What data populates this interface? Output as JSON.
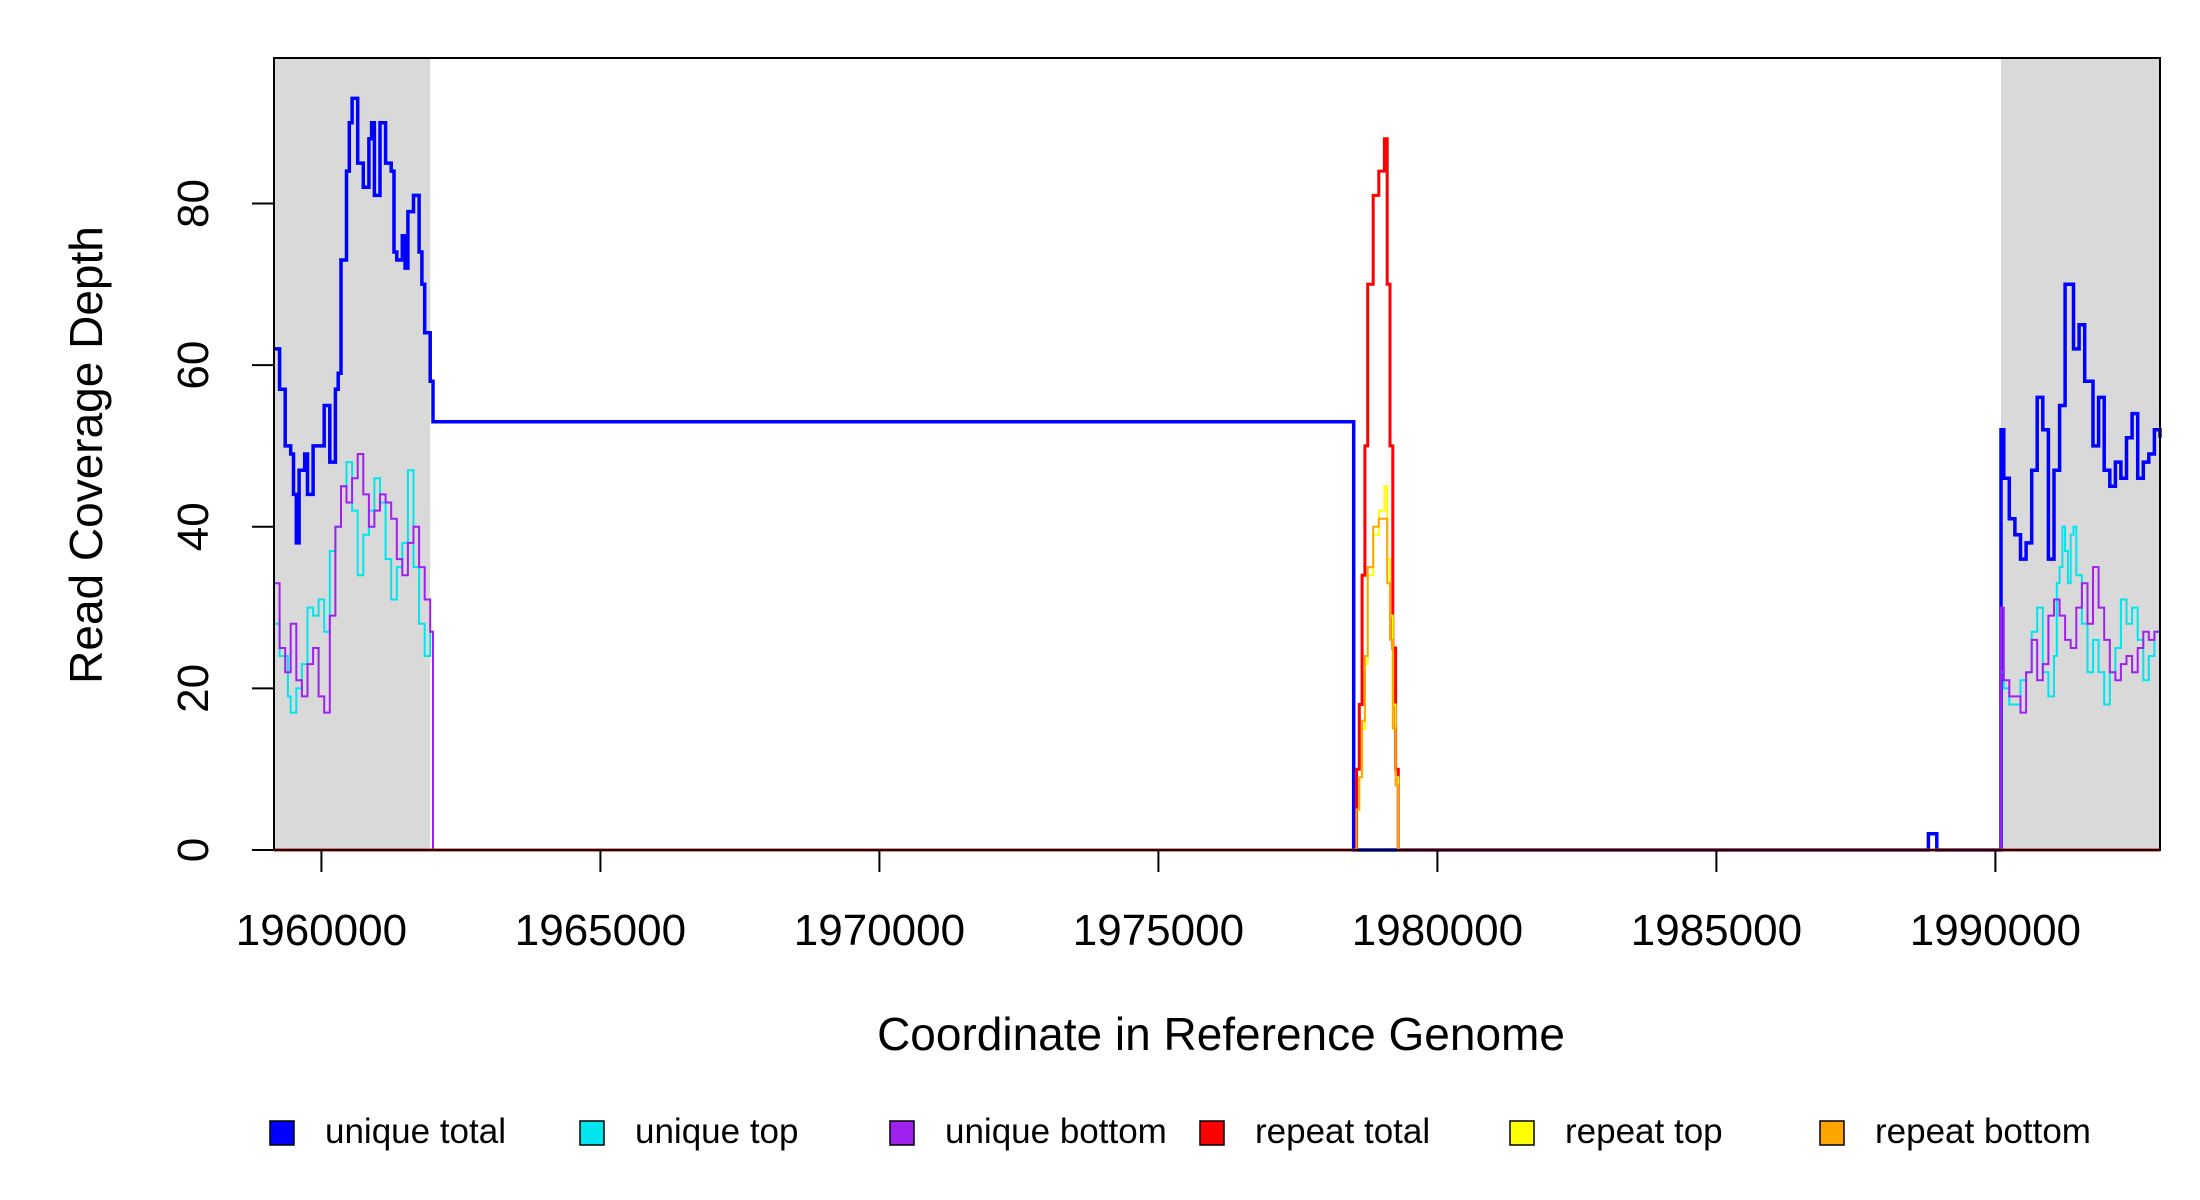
{
  "chart_data": {
    "type": "line",
    "xlabel": "Coordinate in Reference Genome",
    "ylabel": "Read Coverage Depth",
    "xlim": [
      1959150,
      1992950
    ],
    "ylim": [
      0,
      98
    ],
    "x_ticks": [
      1960000,
      1965000,
      1970000,
      1975000,
      1980000,
      1985000,
      1990000
    ],
    "y_ticks": [
      0,
      20,
      40,
      60,
      80
    ],
    "grid": false,
    "shaded_regions": [
      {
        "x": [
          1959150,
          1961950
        ],
        "color": "#d9d9d9"
      },
      {
        "x": [
          1990100,
          1992950
        ],
        "color": "#d9d9d9"
      }
    ],
    "legend_position": "bottom",
    "series": [
      {
        "name": "unique total",
        "color": "#0000ff",
        "step": true,
        "x": [
          1959150,
          1959250,
          1959350,
          1959450,
          1959500,
          1959550,
          1959600,
          1959700,
          1959750,
          1959850,
          1959950,
          1960050,
          1960150,
          1960250,
          1960300,
          1960350,
          1960450,
          1960500,
          1960550,
          1960650,
          1960750,
          1960850,
          1960900,
          1960950,
          1961050,
          1961150,
          1961250,
          1961300,
          1961350,
          1961450,
          1961500,
          1961550,
          1961650,
          1961750,
          1961800,
          1961850,
          1961950,
          1962000,
          1978500,
          1978600,
          1978700,
          1979200,
          1979350,
          1988800,
          1988900,
          1988950,
          1989000,
          1990050,
          1990100,
          1990150,
          1990250,
          1990350,
          1990450,
          1990550,
          1990650,
          1990750,
          1990850,
          1990950,
          1991050,
          1991150,
          1991250,
          1991300,
          1991400,
          1991500,
          1991600,
          1991650,
          1991750,
          1991850,
          1991950,
          1992050,
          1992150,
          1992250,
          1992350,
          1992450,
          1992550,
          1992650,
          1992750,
          1992850,
          1992950
        ],
        "y": [
          62,
          57,
          50,
          49,
          44,
          38,
          47,
          49,
          44,
          50,
          50,
          55,
          48,
          57,
          59,
          73,
          84,
          90,
          93,
          85,
          82,
          88,
          90,
          81,
          90,
          85,
          84,
          74,
          73,
          76,
          72,
          79,
          81,
          74,
          70,
          64,
          58,
          53,
          0,
          0,
          0,
          0,
          0,
          2,
          2,
          0,
          0,
          0,
          52,
          46,
          41,
          39,
          36,
          38,
          47,
          56,
          52,
          36,
          47,
          55,
          70,
          70,
          62,
          65,
          58,
          58,
          50,
          56,
          47,
          45,
          48,
          46,
          51,
          54,
          46,
          48,
          49,
          52,
          51
        ]
      },
      {
        "name": "unique top",
        "color": "#00e5ee",
        "step": true,
        "x": [
          1959150,
          1959250,
          1959400,
          1959450,
          1959550,
          1959650,
          1959750,
          1959850,
          1959950,
          1960050,
          1960150,
          1960250,
          1960350,
          1960450,
          1960550,
          1960650,
          1960750,
          1960850,
          1960950,
          1961050,
          1961150,
          1961250,
          1961350,
          1961450,
          1961550,
          1961650,
          1961750,
          1961850,
          1961950,
          1962000,
          1990100,
          1990150,
          1990250,
          1990350,
          1990450,
          1990550,
          1990650,
          1990750,
          1990850,
          1990950,
          1991050,
          1991100,
          1991150,
          1991200,
          1991250,
          1991300,
          1991350,
          1991400,
          1991450,
          1991550,
          1991650,
          1991750,
          1991850,
          1991950,
          1992050,
          1992150,
          1992250,
          1992350,
          1992450,
          1992550,
          1992650,
          1992750,
          1992850,
          1992950
        ],
        "y": [
          28,
          24,
          19,
          17,
          20,
          23,
          30,
          29,
          31,
          27,
          37,
          40,
          45,
          48,
          42,
          34,
          39,
          42,
          46,
          43,
          36,
          31,
          35,
          38,
          47,
          35,
          28,
          24,
          27,
          0,
          22,
          20,
          18,
          18,
          21,
          22,
          27,
          30,
          22,
          19,
          24,
          33,
          35,
          40,
          37,
          33,
          39,
          40,
          34,
          28,
          22,
          26,
          22,
          18,
          22,
          25,
          31,
          28,
          30,
          26,
          21,
          24,
          27,
          29
        ]
      },
      {
        "name": "unique bottom",
        "color": "#a020f0",
        "step": true,
        "x": [
          1959150,
          1959250,
          1959350,
          1959450,
          1959550,
          1959650,
          1959750,
          1959850,
          1959950,
          1960050,
          1960150,
          1960250,
          1960350,
          1960450,
          1960550,
          1960650,
          1960750,
          1960850,
          1960950,
          1961050,
          1961150,
          1961250,
          1961350,
          1961450,
          1961550,
          1961650,
          1961750,
          1961850,
          1961950,
          1962000,
          1990100,
          1990150,
          1990250,
          1990350,
          1990450,
          1990550,
          1990650,
          1990750,
          1990850,
          1990950,
          1991050,
          1991150,
          1991250,
          1991350,
          1991450,
          1991550,
          1991650,
          1991750,
          1991850,
          1991950,
          1992050,
          1992150,
          1992250,
          1992350,
          1992450,
          1992550,
          1992650,
          1992750,
          1992850,
          1992950
        ],
        "y": [
          33,
          25,
          22,
          28,
          21,
          19,
          23,
          25,
          19,
          17,
          29,
          40,
          45,
          43,
          46,
          49,
          44,
          40,
          42,
          44,
          43,
          41,
          36,
          34,
          38,
          40,
          35,
          31,
          27,
          0,
          30,
          21,
          19,
          19,
          17,
          22,
          26,
          21,
          23,
          29,
          31,
          29,
          26,
          25,
          30,
          33,
          28,
          35,
          30,
          26,
          22,
          21,
          23,
          24,
          22,
          25,
          27,
          26,
          27,
          24
        ]
      },
      {
        "name": "repeat total",
        "color": "#ff0000",
        "step": true,
        "x": [
          1959150,
          1978550,
          1978600,
          1978650,
          1978700,
          1978750,
          1978850,
          1978950,
          1979050,
          1979100,
          1979150,
          1979200,
          1979250,
          1979300,
          1979350,
          1992950
        ],
        "y": [
          0,
          10,
          18,
          34,
          50,
          70,
          81,
          84,
          88,
          70,
          50,
          25,
          10,
          0,
          0,
          0
        ]
      },
      {
        "name": "repeat top",
        "color": "#ffff00",
        "step": true,
        "x": [
          1959150,
          1978550,
          1978600,
          1978650,
          1978700,
          1978750,
          1978850,
          1978950,
          1979050,
          1979100,
          1979150,
          1979200,
          1979250,
          1979300,
          1979350,
          1992950
        ],
        "y": [
          0,
          5,
          9,
          15,
          23,
          34,
          39,
          42,
          45,
          36,
          29,
          18,
          9,
          0,
          0,
          0
        ]
      },
      {
        "name": "repeat bottom",
        "color": "#ffa500",
        "step": true,
        "x": [
          1959150,
          1978550,
          1978600,
          1978650,
          1978700,
          1978750,
          1978850,
          1978950,
          1979050,
          1979100,
          1979150,
          1979200,
          1979250,
          1979300,
          1979350,
          1992950
        ],
        "y": [
          0,
          5,
          9,
          16,
          24,
          35,
          40,
          41,
          41,
          33,
          26,
          15,
          8,
          0,
          0,
          0
        ]
      }
    ]
  }
}
